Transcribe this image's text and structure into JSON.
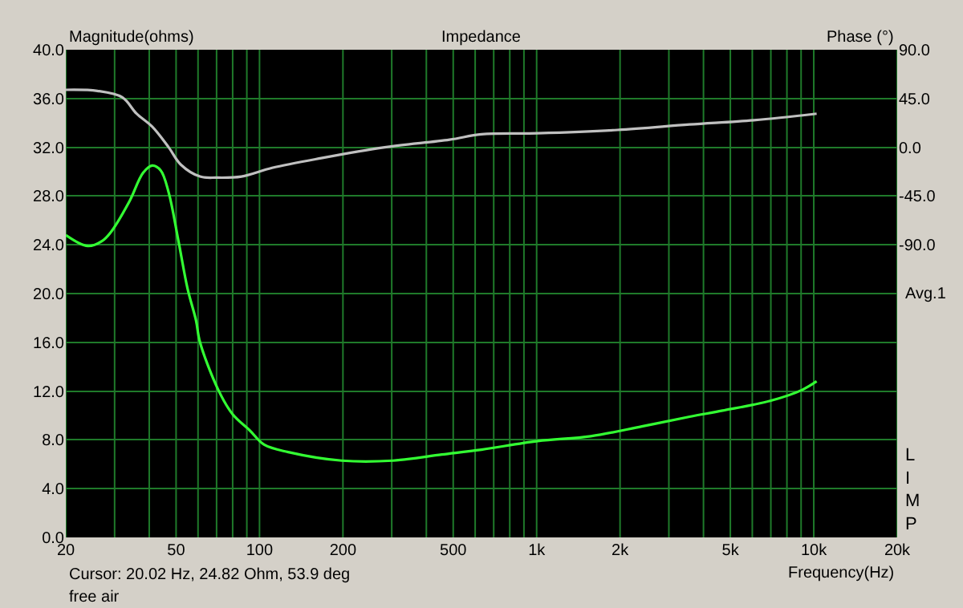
{
  "chart_data": {
    "type": "line",
    "title": "Impedance",
    "xlabel": "Frequency(Hz)",
    "ylabel": "Magnitude(ohms)",
    "y2label": "Phase (°)",
    "annotations": [
      "Cursor: 20.02 Hz, 24.82 Ohm, 53.9 deg",
      "free air",
      "Avg.1",
      "LIMP"
    ],
    "log": "x",
    "grid": true,
    "line_style": "solid",
    "marker": "none",
    "xlim": [
      20,
      20000
    ],
    "xticks": [
      20,
      50,
      100,
      200,
      500,
      {
        "value": 1000,
        "label": "1k"
      },
      {
        "value": 2000,
        "label": "2k"
      },
      {
        "value": 5000,
        "label": "5k"
      },
      {
        "value": 10000,
        "label": "10k"
      },
      {
        "value": 20000,
        "label": "20k"
      }
    ],
    "ylim": [
      0,
      40
    ],
    "yticks": [
      {
        "value": 0,
        "label": "0.0"
      },
      {
        "value": 4,
        "label": "4.0"
      },
      {
        "value": 8,
        "label": "8.0"
      },
      {
        "value": 12,
        "label": "12.0"
      },
      {
        "value": 16,
        "label": "16.0"
      },
      {
        "value": 20,
        "label": "20.0"
      },
      {
        "value": 24,
        "label": "24.0"
      },
      {
        "value": 28,
        "label": "28.0"
      },
      {
        "value": 32,
        "label": "32.0"
      },
      {
        "value": 36,
        "label": "36.0"
      },
      {
        "value": 40,
        "label": "40.0"
      }
    ],
    "y2lim": [
      -360,
      90
    ],
    "y2ticks": [
      {
        "value": 90,
        "label": "90.0"
      },
      {
        "value": 45,
        "label": "45.0"
      },
      {
        "value": 0,
        "label": "0.0"
      },
      {
        "value": -45,
        "label": "-45.0"
      },
      {
        "value": -90,
        "label": "-90.0"
      }
    ],
    "series": [
      {
        "color": "#33ff33",
        "x": [
          20,
          24,
          27,
          29,
          34,
          38,
          41,
          44,
          47,
          51,
          55,
          59,
          61,
          71,
          80,
          92,
          104,
          127,
          198,
          303,
          455,
          632,
          1008,
          1566,
          2396,
          3565,
          4683,
          6956,
          9080,
          10240
        ],
        "values": [
          24.8,
          23.9,
          24.3,
          25.0,
          27.6,
          29.9,
          30.5,
          30.1,
          28.3,
          24.3,
          20.4,
          17.8,
          16.0,
          12.1,
          10.1,
          8.8,
          7.6,
          7.0,
          6.3,
          6.3,
          6.8,
          7.2,
          7.9,
          8.3,
          9.1,
          9.9,
          10.4,
          11.2,
          12.1,
          12.8
        ]
      },
      {
        "color": "#c0c0c0",
        "axis": "y2",
        "x": [
          20,
          26,
          32,
          36,
          41,
          47,
          52,
          61,
          70,
          86,
          111,
          167,
          283,
          485,
          632,
          1008,
          1958,
          3565,
          6078,
          10240
        ],
        "values": [
          53,
          52,
          46,
          31,
          19,
          0,
          -16,
          -27,
          -28,
          -27,
          -19,
          -10,
          0,
          7,
          12,
          13,
          16,
          21,
          25,
          31
        ]
      }
    ]
  }
}
